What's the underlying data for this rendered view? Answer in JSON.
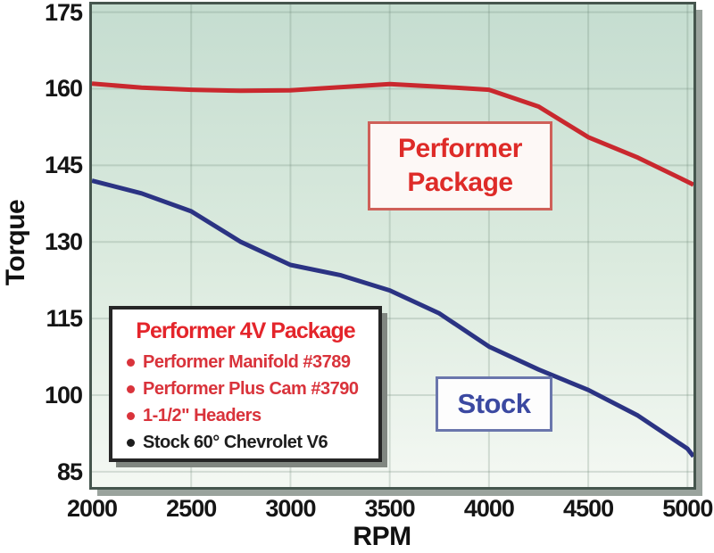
{
  "chart_data": {
    "type": "line",
    "title": "",
    "xlabel": "RPM",
    "ylabel": "Torque",
    "x_ticks": [
      "2000",
      "2500",
      "3000",
      "3500",
      "4000",
      "4500",
      "5000"
    ],
    "x_tick_values": [
      2000,
      2500,
      3000,
      3500,
      4000,
      4500,
      5000
    ],
    "y_ticks": [
      "85",
      "100",
      "115",
      "130",
      "145",
      "160",
      "175"
    ],
    "y_tick_values": [
      85,
      100,
      115,
      130,
      145,
      160,
      175
    ],
    "xlim": [
      2000,
      5030
    ],
    "ylim": [
      82,
      176.5
    ],
    "grid": true,
    "legend_position": "none",
    "x": [
      2000,
      2250,
      2500,
      2750,
      3000,
      3250,
      3500,
      3750,
      4000,
      4250,
      4500,
      4750,
      5000,
      5030
    ],
    "series": [
      {
        "name": "Performer Package",
        "color": "#c9282e",
        "values": [
          161,
          160.2,
          159.8,
          159.6,
          159.7,
          160.3,
          160.9,
          160.4,
          159.8,
          156.5,
          150.5,
          146.5,
          141.8,
          141.2
        ]
      },
      {
        "name": "Stock",
        "color": "#2b3383",
        "values": [
          142,
          139.5,
          136,
          130,
          125.5,
          123.5,
          120.5,
          116,
          109.5,
          105,
          101,
          96,
          89.5,
          88
        ]
      }
    ],
    "plot_bg_gradient_top": "#c5ddd0",
    "plot_bg_gradient_bottom": "#f4f8f3",
    "gridline_color": "rgba(95,125,105,0.22)"
  },
  "annotations": {
    "performer_label": {
      "line1": "Performer",
      "line2": "Package",
      "color": "#de2b28"
    },
    "stock_label": {
      "text": "Stock",
      "color": "#3b49a1"
    }
  },
  "legend": {
    "title": "Performer 4V Package",
    "title_color": "#e4252b",
    "items": [
      {
        "text": "Performer Manifold #3789",
        "color": "#d9333b"
      },
      {
        "text": "Performer Plus Cam #3790",
        "color": "#d9333b"
      },
      {
        "text": "1-1/2\" Headers",
        "color": "#d9333b"
      },
      {
        "text": "Stock 60° Chevrolet V6",
        "color": "#1d1d1d"
      }
    ]
  }
}
